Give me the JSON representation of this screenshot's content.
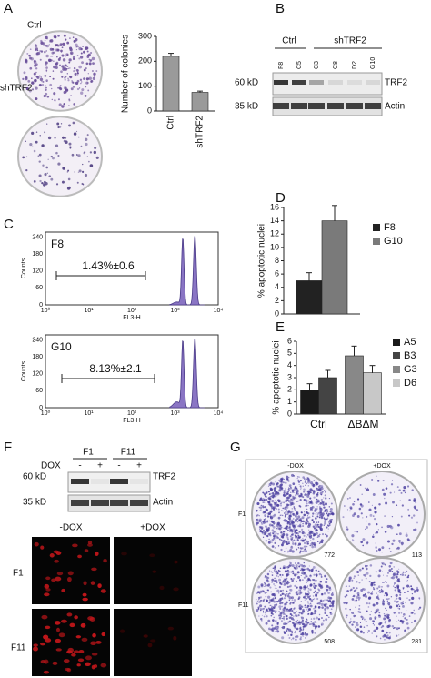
{
  "panel_letters": [
    "A",
    "B",
    "C",
    "D",
    "E",
    "F",
    "G"
  ],
  "panel_a": {
    "dishes": [
      "Ctrl",
      "shTRF2"
    ]
  },
  "panel_b": {
    "groups": [
      "Ctrl",
      "shTRF2"
    ],
    "lanes": [
      "F8",
      "C5",
      "C3",
      "C8",
      "D2",
      "G10"
    ],
    "markers": [
      "60 kD",
      "35 kD"
    ],
    "proteins": [
      "TRF2",
      "Actin"
    ]
  },
  "panel_c": {
    "y_label": "Counts",
    "x_label": "FL3-H",
    "yticks": [
      "0",
      "60",
      "120",
      "180",
      "240"
    ],
    "xticks": [
      "10⁰",
      "10¹",
      "10²",
      "10³",
      "10⁴"
    ],
    "plots": [
      {
        "label": "F8",
        "annotation": "1.43%±0.6"
      },
      {
        "label": "G10",
        "annotation": "8.13%±2.1"
      }
    ]
  },
  "panel_f": {
    "clones": [
      "F1",
      "F11"
    ],
    "treatment": "DOX",
    "signs": [
      "-",
      "+",
      "-",
      "+"
    ],
    "markers": [
      "60 kD",
      "35 kD"
    ],
    "proteins": [
      "TRF2",
      "Actin"
    ],
    "imaging_columns": [
      "-DOX",
      "+DOX"
    ],
    "imaging_rows": [
      "F1",
      "F11"
    ]
  },
  "panel_g": {
    "columns": [
      "-DOX",
      "+DOX"
    ],
    "rows": [
      "F1",
      "F11"
    ],
    "counts": [
      "772",
      "113",
      "508",
      "281"
    ]
  },
  "chart_data": [
    {
      "type": "bar",
      "y_label": "Number of colonies",
      "categories": [
        "Ctrl",
        "shTRF2"
      ],
      "series": [
        {
          "color": "#9a9a9a",
          "values": [
            220,
            75
          ],
          "errors": [
            12,
            5
          ]
        }
      ],
      "ylim": [
        0,
        300
      ],
      "yticks": [
        0,
        100,
        200,
        300
      ]
    },
    {
      "type": "bar",
      "y_label": "% apoptotic nuclei",
      "categories": [
        null
      ],
      "series": [
        {
          "name": "F8",
          "color": "#222222",
          "values": [
            5
          ],
          "errors": [
            1.2
          ]
        },
        {
          "name": "G10",
          "color": "#7a7a7a",
          "values": [
            14
          ],
          "errors": [
            2.3
          ]
        }
      ],
      "ylim": [
        0,
        16
      ],
      "yticks": [
        0,
        2,
        4,
        6,
        8,
        10,
        12,
        14,
        16
      ],
      "legend": "right"
    },
    {
      "type": "bar",
      "y_label": "% apoptotic nuclei",
      "categories": [
        "Ctrl",
        "ΔBΔM"
      ],
      "series": [
        {
          "name": "A5",
          "color": "#1a1a1a",
          "values": [
            2.0,
            null
          ],
          "errors": [
            0.5,
            null
          ]
        },
        {
          "name": "B3",
          "color": "#444444",
          "values": [
            3.0,
            null
          ],
          "errors": [
            0.6,
            null
          ]
        },
        {
          "name": "G3",
          "color": "#888888",
          "values": [
            null,
            4.8
          ],
          "errors": [
            null,
            0.8
          ]
        },
        {
          "name": "D6",
          "color": "#c8c8c8",
          "values": [
            null,
            3.4
          ],
          "errors": [
            null,
            0.6
          ]
        }
      ],
      "ylim": [
        0,
        6
      ],
      "yticks": [
        0,
        1,
        2,
        3,
        4,
        5,
        6
      ],
      "legend": "right"
    }
  ]
}
